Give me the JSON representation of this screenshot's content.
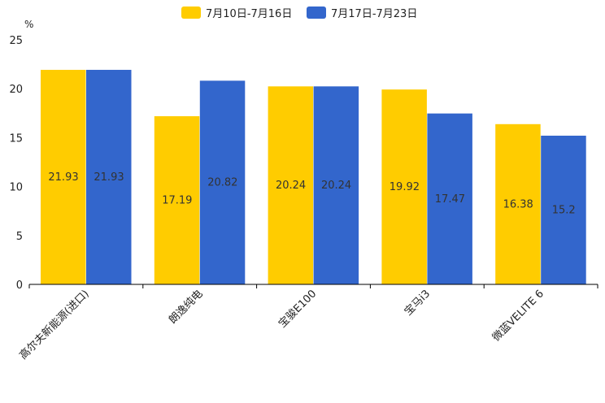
{
  "chart_data": {
    "type": "bar",
    "unit": "%",
    "categories": [
      "高尔夫新能源(进口)",
      "朗逸纯电",
      "宝骏E100",
      "宝马i3",
      "微蓝VELITE 6"
    ],
    "series": [
      {
        "name": "7月10日-7月16日",
        "color": "#FFCC00",
        "values": [
          21.93,
          17.19,
          20.24,
          19.92,
          16.38
        ]
      },
      {
        "name": "7月17日-7月23日",
        "color": "#3366CC",
        "values": [
          21.93,
          20.82,
          20.24,
          17.47,
          15.2
        ]
      }
    ],
    "yticks": [
      0,
      5,
      10,
      15,
      20,
      25
    ],
    "ylim": [
      0,
      25
    ],
    "legend_position": "top-center",
    "title": "",
    "xlabel": "",
    "ylabel": "%"
  }
}
